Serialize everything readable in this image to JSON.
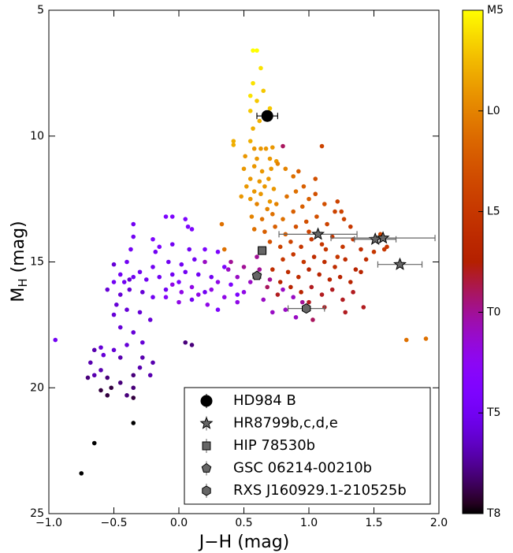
{
  "chart_data": {
    "type": "scatter",
    "xlabel": "J−H (mag)",
    "ylabel": {
      "text": "M",
      "sub": "H",
      "suffix": " (mag)"
    },
    "xlim": [
      -1.0,
      2.0
    ],
    "ylim": [
      25,
      5
    ],
    "xticks": [
      {
        "value": -1.0,
        "label": "−1.0"
      },
      {
        "value": -0.5,
        "label": "−0.5"
      },
      {
        "value": 0.0,
        "label": "0.0"
      },
      {
        "value": 0.5,
        "label": "0.5"
      },
      {
        "value": 1.0,
        "label": "1.0"
      },
      {
        "value": 1.5,
        "label": "1.5"
      },
      {
        "value": 2.0,
        "label": "2.0"
      }
    ],
    "yticks": [
      5,
      10,
      15,
      20,
      25
    ],
    "colormap": "gnuplot",
    "clim": [
      30,
      5
    ],
    "cticks": [
      {
        "value": 5,
        "label": "M5"
      },
      {
        "value": 10,
        "label": "L0"
      },
      {
        "value": 15,
        "label": "L5"
      },
      {
        "value": 20,
        "label": "T0"
      },
      {
        "value": 25,
        "label": "T5"
      },
      {
        "value": 30,
        "label": "T8"
      }
    ],
    "points": {
      "x": [
        0.57,
        0.6,
        0.57,
        0.63,
        0.55,
        0.6,
        0.65,
        0.55,
        0.7,
        0.62,
        0.57,
        0.42,
        0.42,
        0.55,
        0.58,
        0.63,
        0.67,
        0.72,
        0.51,
        0.6,
        0.7,
        0.75,
        0.5,
        0.58,
        0.64,
        0.71,
        0.55,
        0.62,
        0.69,
        0.52,
        0.58,
        0.66,
        0.73,
        0.48,
        0.55,
        0.63,
        0.7,
        0.76,
        0.82,
        0.88,
        0.6,
        0.68,
        0.75,
        0.83,
        0.9,
        0.96,
        0.56,
        0.64,
        0.72,
        0.8,
        0.88,
        0.95,
        1.0,
        1.05,
        1.12,
        0.33,
        0.58,
        0.66,
        0.74,
        0.82,
        0.9,
        0.98,
        1.06,
        1.14,
        1.2,
        1.22,
        1.27,
        1.1,
        1.05,
        0.92,
        0.35,
        1.75,
        1.9,
        0.7,
        0.78,
        0.86,
        0.94,
        1.02,
        1.1,
        1.18,
        1.26,
        1.34,
        1.4,
        1.32,
        1.22,
        0.8,
        0.88,
        0.96,
        1.04,
        1.12,
        1.2,
        1.28,
        1.36,
        1.44,
        1.5,
        1.58,
        0.84,
        0.92,
        1.0,
        1.08,
        1.16,
        1.24,
        1.32,
        1.4,
        0.86,
        0.94,
        1.02,
        1.1,
        1.18,
        1.26,
        1.34,
        1.0,
        1.12,
        1.28,
        1.42,
        1.03,
        0.72,
        0.78,
        0.76,
        0.68,
        1.25,
        1.0,
        1.13,
        1.55,
        1.6,
        0.4,
        0.5,
        0.62,
        0.7,
        0.8,
        0.88,
        0.95,
        0.65,
        0.72,
        0.82,
        0.9,
        0.55,
        0.45,
        0.2,
        0.6,
        0.8,
        0.38,
        0.3,
        0.25,
        0.15,
        0.1,
        0.02,
        -0.05,
        0.35,
        0.45,
        0.5,
        0.22,
        0.0,
        -0.1,
        -0.1,
        -0.05,
        0.05,
        0.07,
        0.1,
        -0.2,
        -0.15,
        -0.18,
        -0.05,
        0.08,
        0.2,
        0.3,
        0.12,
        0.02,
        -0.08,
        -0.2,
        -0.3,
        -0.45,
        -0.5,
        -0.42,
        -0.35,
        -0.25,
        -0.15,
        -0.05,
        0.05,
        0.15,
        0.25,
        0.35,
        0.4,
        0.45,
        0.3,
        0.2,
        0.1,
        -0.1,
        -0.2,
        -0.28,
        -0.38,
        -0.45,
        -0.48,
        -0.5,
        -0.4,
        -0.3,
        -0.22,
        -0.45,
        -0.35,
        -0.28,
        -0.4,
        -0.5,
        -0.6,
        -0.58,
        -0.95,
        -0.35,
        -0.35,
        -0.37,
        -0.4,
        -0.5,
        -0.38,
        0.0,
        -0.55,
        -0.65,
        -0.68,
        -0.6,
        -0.65,
        -0.55,
        -0.45,
        -0.4,
        -0.35,
        -0.3,
        -0.2,
        -0.45,
        -0.35,
        -0.28,
        0.05,
        0.1,
        -0.6,
        -0.55,
        -0.52,
        -0.35,
        -0.35,
        -0.65,
        -0.75,
        -0.7,
        -0.22
      ],
      "y": [
        6.6,
        6.6,
        7.9,
        7.3,
        8.4,
        8.6,
        8.2,
        9.0,
        8.9,
        9.4,
        9.7,
        10.2,
        10.35,
        10.2,
        10.5,
        10.5,
        10.5,
        10.45,
        10.8,
        10.9,
        10.9,
        11.0,
        11.3,
        11.2,
        11.4,
        11.3,
        11.7,
        11.8,
        11.7,
        12.0,
        12.2,
        12.0,
        12.1,
        12.4,
        12.5,
        12.3,
        12.6,
        11.1,
        11.3,
        11.6,
        12.7,
        12.9,
        12.7,
        12.4,
        12.2,
        12.0,
        13.2,
        13.3,
        13.1,
        13.3,
        13.0,
        12.8,
        12.5,
        12.3,
        12.7,
        13.5,
        13.7,
        13.8,
        13.6,
        13.9,
        13.6,
        13.4,
        13.2,
        13.5,
        13.0,
        12.6,
        13.3,
        10.4,
        11.7,
        11.4,
        14.5,
        18.1,
        18.05,
        14.2,
        14.4,
        14.2,
        14.4,
        14.1,
        14.3,
        14.0,
        14.4,
        14.1,
        14.5,
        13.6,
        14.8,
        14.9,
        14.7,
        15.0,
        14.8,
        15.0,
        15.2,
        14.9,
        15.3,
        14.9,
        14.6,
        14.5,
        15.4,
        15.6,
        15.3,
        15.5,
        15.7,
        15.6,
        15.8,
        15.4,
        16.0,
        16.2,
        16.0,
        16.3,
        16.1,
        16.5,
        16.2,
        16.6,
        16.8,
        17.0,
        16.8,
        17.3,
        15.3,
        15.8,
        16.3,
        16.0,
        13.0,
        13.8,
        14.5,
        13.9,
        14.4,
        15.0,
        15.2,
        15.3,
        15.7,
        16.1,
        16.4,
        16.6,
        16.5,
        17.0,
        16.9,
        17.2,
        15.8,
        15.6,
        15.0,
        14.8,
        10.4,
        15.3,
        15.8,
        16.1,
        16.3,
        16.0,
        16.2,
        15.9,
        16.4,
        16.6,
        16.2,
        16.7,
        16.6,
        16.4,
        13.2,
        13.2,
        13.3,
        13.6,
        13.7,
        14.1,
        14.4,
        14.6,
        14.3,
        14.5,
        14.5,
        14.6,
        14.9,
        15.1,
        15.0,
        15.2,
        15.4,
        15.5,
        15.8,
        15.8,
        15.6,
        15.7,
        15.6,
        15.5,
        15.4,
        15.5,
        15.6,
        15.2,
        15.9,
        16.3,
        16.9,
        16.2,
        16.5,
        16.1,
        16.4,
        16.2,
        16.1,
        16.3,
        16.7,
        17.1,
        16.9,
        17.0,
        17.3,
        17.6,
        17.8,
        18.2,
        18.3,
        18.5,
        18.4,
        18.7,
        18.1,
        13.5,
        14.0,
        14.5,
        15.0,
        15.1,
        15.7,
        15.8,
        16.1,
        18.5,
        19.0,
        19.3,
        19.5,
        19.6,
        19.8,
        20.3,
        20.0,
        19.2,
        19.0,
        18.8,
        19.5,
        18.8,
        18.2,
        18.3,
        20.1,
        20.3,
        20.0,
        20.4,
        21.4,
        22.2,
        23.4,
        19.6,
        19.5
      ],
      "c": [
        5,
        5,
        6,
        6,
        6,
        7,
        7,
        7,
        7,
        8,
        8,
        8,
        8,
        8,
        9,
        9,
        9,
        9,
        9,
        9,
        9,
        9,
        9,
        9,
        9,
        9,
        9,
        9,
        9,
        9,
        9,
        9,
        9,
        9,
        9,
        9,
        9,
        10,
        10,
        11,
        10,
        10,
        10,
        11,
        11,
        12,
        10,
        11,
        11,
        11,
        12,
        12,
        12,
        13,
        13,
        11,
        11,
        12,
        12,
        12,
        13,
        13,
        13,
        14,
        14,
        14,
        14,
        14,
        13,
        12,
        11,
        11,
        11,
        13,
        14,
        14,
        15,
        15,
        15,
        15,
        15,
        15,
        16,
        15,
        15,
        15,
        15,
        15,
        16,
        16,
        16,
        16,
        17,
        16,
        15,
        15,
        16,
        16,
        17,
        17,
        17,
        17,
        17,
        17,
        17,
        17,
        18,
        18,
        18,
        18,
        18,
        18,
        18,
        18,
        18,
        19,
        16,
        17,
        18,
        19,
        14,
        14,
        15,
        14,
        15,
        20,
        20,
        20,
        20,
        21,
        21,
        20,
        21,
        21,
        21,
        21,
        21,
        21,
        21,
        20,
        19,
        21,
        22,
        22,
        22,
        22,
        22,
        22,
        22,
        22,
        22,
        22,
        22,
        23,
        24,
        24,
        24,
        24,
        24,
        24,
        24,
        25,
        25,
        25,
        24,
        24,
        25,
        25,
        25,
        25,
        25,
        25,
        25,
        25,
        25,
        25,
        25,
        25,
        25,
        25,
        25,
        24,
        24,
        24,
        24,
        25,
        25,
        25,
        25,
        26,
        26,
        26,
        26,
        26,
        26,
        26,
        26,
        26,
        26,
        26,
        26,
        26,
        26,
        26,
        25,
        25,
        25,
        25,
        25,
        26,
        26,
        24,
        26,
        27,
        27,
        27,
        27,
        28,
        28,
        28,
        28,
        27,
        27,
        27,
        28,
        27,
        28,
        28,
        29,
        29,
        29,
        29,
        30,
        30,
        30,
        28,
        27
      ]
    },
    "series": [
      {
        "name": "HD984 B",
        "marker": "circle",
        "color": "#000000",
        "x": [
          0.68
        ],
        "y": [
          9.2
        ],
        "xerr": [
          0.08
        ]
      },
      {
        "name": "HR8799b,c,d,e",
        "marker": "star",
        "color": "#666666",
        "x": [
          1.07,
          1.51,
          1.57,
          1.7
        ],
        "y": [
          13.9,
          14.1,
          14.05,
          15.1
        ],
        "xerr": [
          0.3,
          0.16,
          0.4,
          0.17
        ]
      },
      {
        "name": "HIP 78530b",
        "marker": "square",
        "color": "#666666",
        "x": [
          0.64
        ],
        "y": [
          14.55
        ],
        "xerr": [
          0.03
        ]
      },
      {
        "name": "GSC 06214-00210b",
        "marker": "pentagon",
        "color": "#666666",
        "x": [
          0.6
        ],
        "y": [
          15.55
        ],
        "xerr": [
          0.03
        ]
      },
      {
        "name": "RXS J160929.1-210525b",
        "marker": "hexagon",
        "color": "#666666",
        "x": [
          0.98
        ],
        "y": [
          16.85
        ],
        "xerr": [
          0.14
        ]
      }
    ],
    "legend": "lower right"
  }
}
